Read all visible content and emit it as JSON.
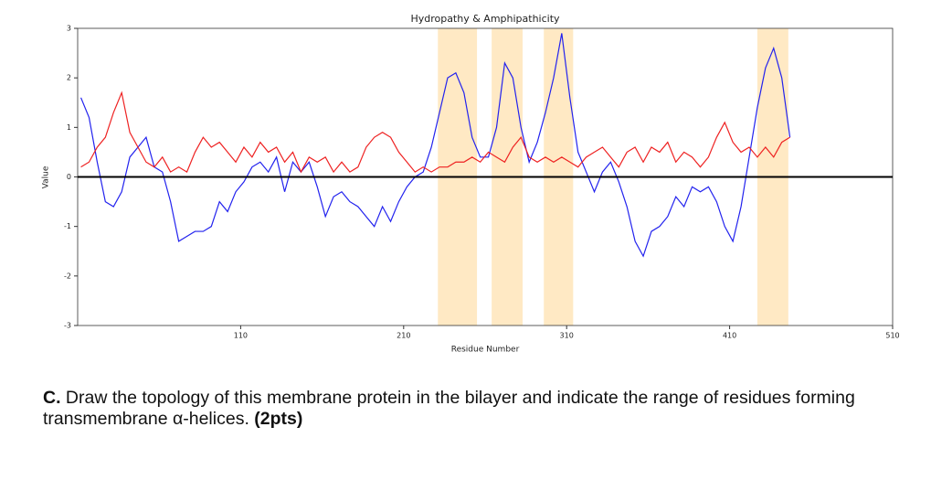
{
  "chart_data": {
    "type": "line",
    "title": "Hydropathy & Amphipathicity",
    "xlabel": "Residue Number",
    "ylabel": "Value",
    "xlim": [
      10,
      510
    ],
    "xticks": [
      110,
      210,
      310,
      410,
      510
    ],
    "ylim": [
      -3,
      3
    ],
    "yticks": [
      -3,
      -2,
      -1,
      0,
      1,
      2,
      3
    ],
    "grid": false,
    "reference_line": 0,
    "reference_color": "#000000",
    "span_color": "#ffe9c4",
    "spans": [
      [
        231,
        255
      ],
      [
        264,
        283
      ],
      [
        296,
        314
      ],
      [
        427,
        446
      ]
    ],
    "x": [
      12,
      17,
      22,
      27,
      32,
      37,
      42,
      47,
      52,
      57,
      62,
      67,
      72,
      77,
      82,
      87,
      92,
      97,
      102,
      107,
      112,
      117,
      122,
      127,
      132,
      137,
      142,
      147,
      152,
      157,
      162,
      167,
      172,
      177,
      182,
      187,
      192,
      197,
      202,
      207,
      212,
      217,
      222,
      227,
      232,
      237,
      242,
      247,
      252,
      257,
      262,
      267,
      272,
      277,
      282,
      287,
      292,
      297,
      302,
      307,
      312,
      317,
      322,
      327,
      332,
      337,
      342,
      347,
      352,
      357,
      362,
      367,
      372,
      377,
      382,
      387,
      392,
      397,
      402,
      407,
      412,
      417,
      422,
      427,
      432,
      437,
      442,
      447
    ],
    "series": [
      {
        "color": "#2222ee",
        "values": [
          1.6,
          1.2,
          0.3,
          -0.5,
          -0.6,
          -0.3,
          0.4,
          0.6,
          0.8,
          0.2,
          0.1,
          -0.5,
          -1.3,
          -1.2,
          -1.1,
          -1.1,
          -1.0,
          -0.5,
          -0.7,
          -0.3,
          -0.1,
          0.2,
          0.3,
          0.1,
          0.4,
          -0.3,
          0.3,
          0.1,
          0.3,
          -0.2,
          -0.8,
          -0.4,
          -0.3,
          -0.5,
          -0.6,
          -0.8,
          -1.0,
          -0.6,
          -0.9,
          -0.5,
          -0.2,
          0,
          0.1,
          0.6,
          1.3,
          2.0,
          2.1,
          1.7,
          0.8,
          0.4,
          0.4,
          1.0,
          2.3,
          2.0,
          1.0,
          0.3,
          0.7,
          1.3,
          2.0,
          2.9,
          1.6,
          0.5,
          0.1,
          -0.3,
          0.1,
          0.3,
          -0.1,
          -0.6,
          -1.3,
          -1.6,
          -1.1,
          -1.0,
          -0.8,
          -0.4,
          -0.6,
          -0.2,
          -0.3,
          -0.2,
          -0.5,
          -1.0,
          -1.3,
          -0.6,
          0.4,
          1.4,
          2.2,
          2.6,
          2.0,
          0.8
        ]
      },
      {
        "color": "#ee2222",
        "values": [
          0.2,
          0.3,
          0.6,
          0.8,
          1.3,
          1.7,
          0.9,
          0.6,
          0.3,
          0.2,
          0.4,
          0.1,
          0.2,
          0.1,
          0.5,
          0.8,
          0.6,
          0.7,
          0.5,
          0.3,
          0.6,
          0.4,
          0.7,
          0.5,
          0.6,
          0.3,
          0.5,
          0.1,
          0.4,
          0.3,
          0.4,
          0.1,
          0.3,
          0.1,
          0.2,
          0.6,
          0.8,
          0.9,
          0.8,
          0.5,
          0.3,
          0.1,
          0.2,
          0.1,
          0.2,
          0.2,
          0.3,
          0.3,
          0.4,
          0.3,
          0.5,
          0.4,
          0.3,
          0.6,
          0.8,
          0.4,
          0.3,
          0.4,
          0.3,
          0.4,
          0.3,
          0.2,
          0.4,
          0.5,
          0.6,
          0.4,
          0.2,
          0.5,
          0.6,
          0.3,
          0.6,
          0.5,
          0.7,
          0.3,
          0.5,
          0.4,
          0.2,
          0.4,
          0.8,
          1.1,
          0.7,
          0.5,
          0.6,
          0.4,
          0.6,
          0.4,
          0.7,
          0.8
        ]
      }
    ]
  },
  "question": {
    "label": "C.",
    "text": "Draw the topology of this membrane protein in the bilayer and indicate the range of residues forming transmembrane α-helices.",
    "points": "(2pts)"
  }
}
